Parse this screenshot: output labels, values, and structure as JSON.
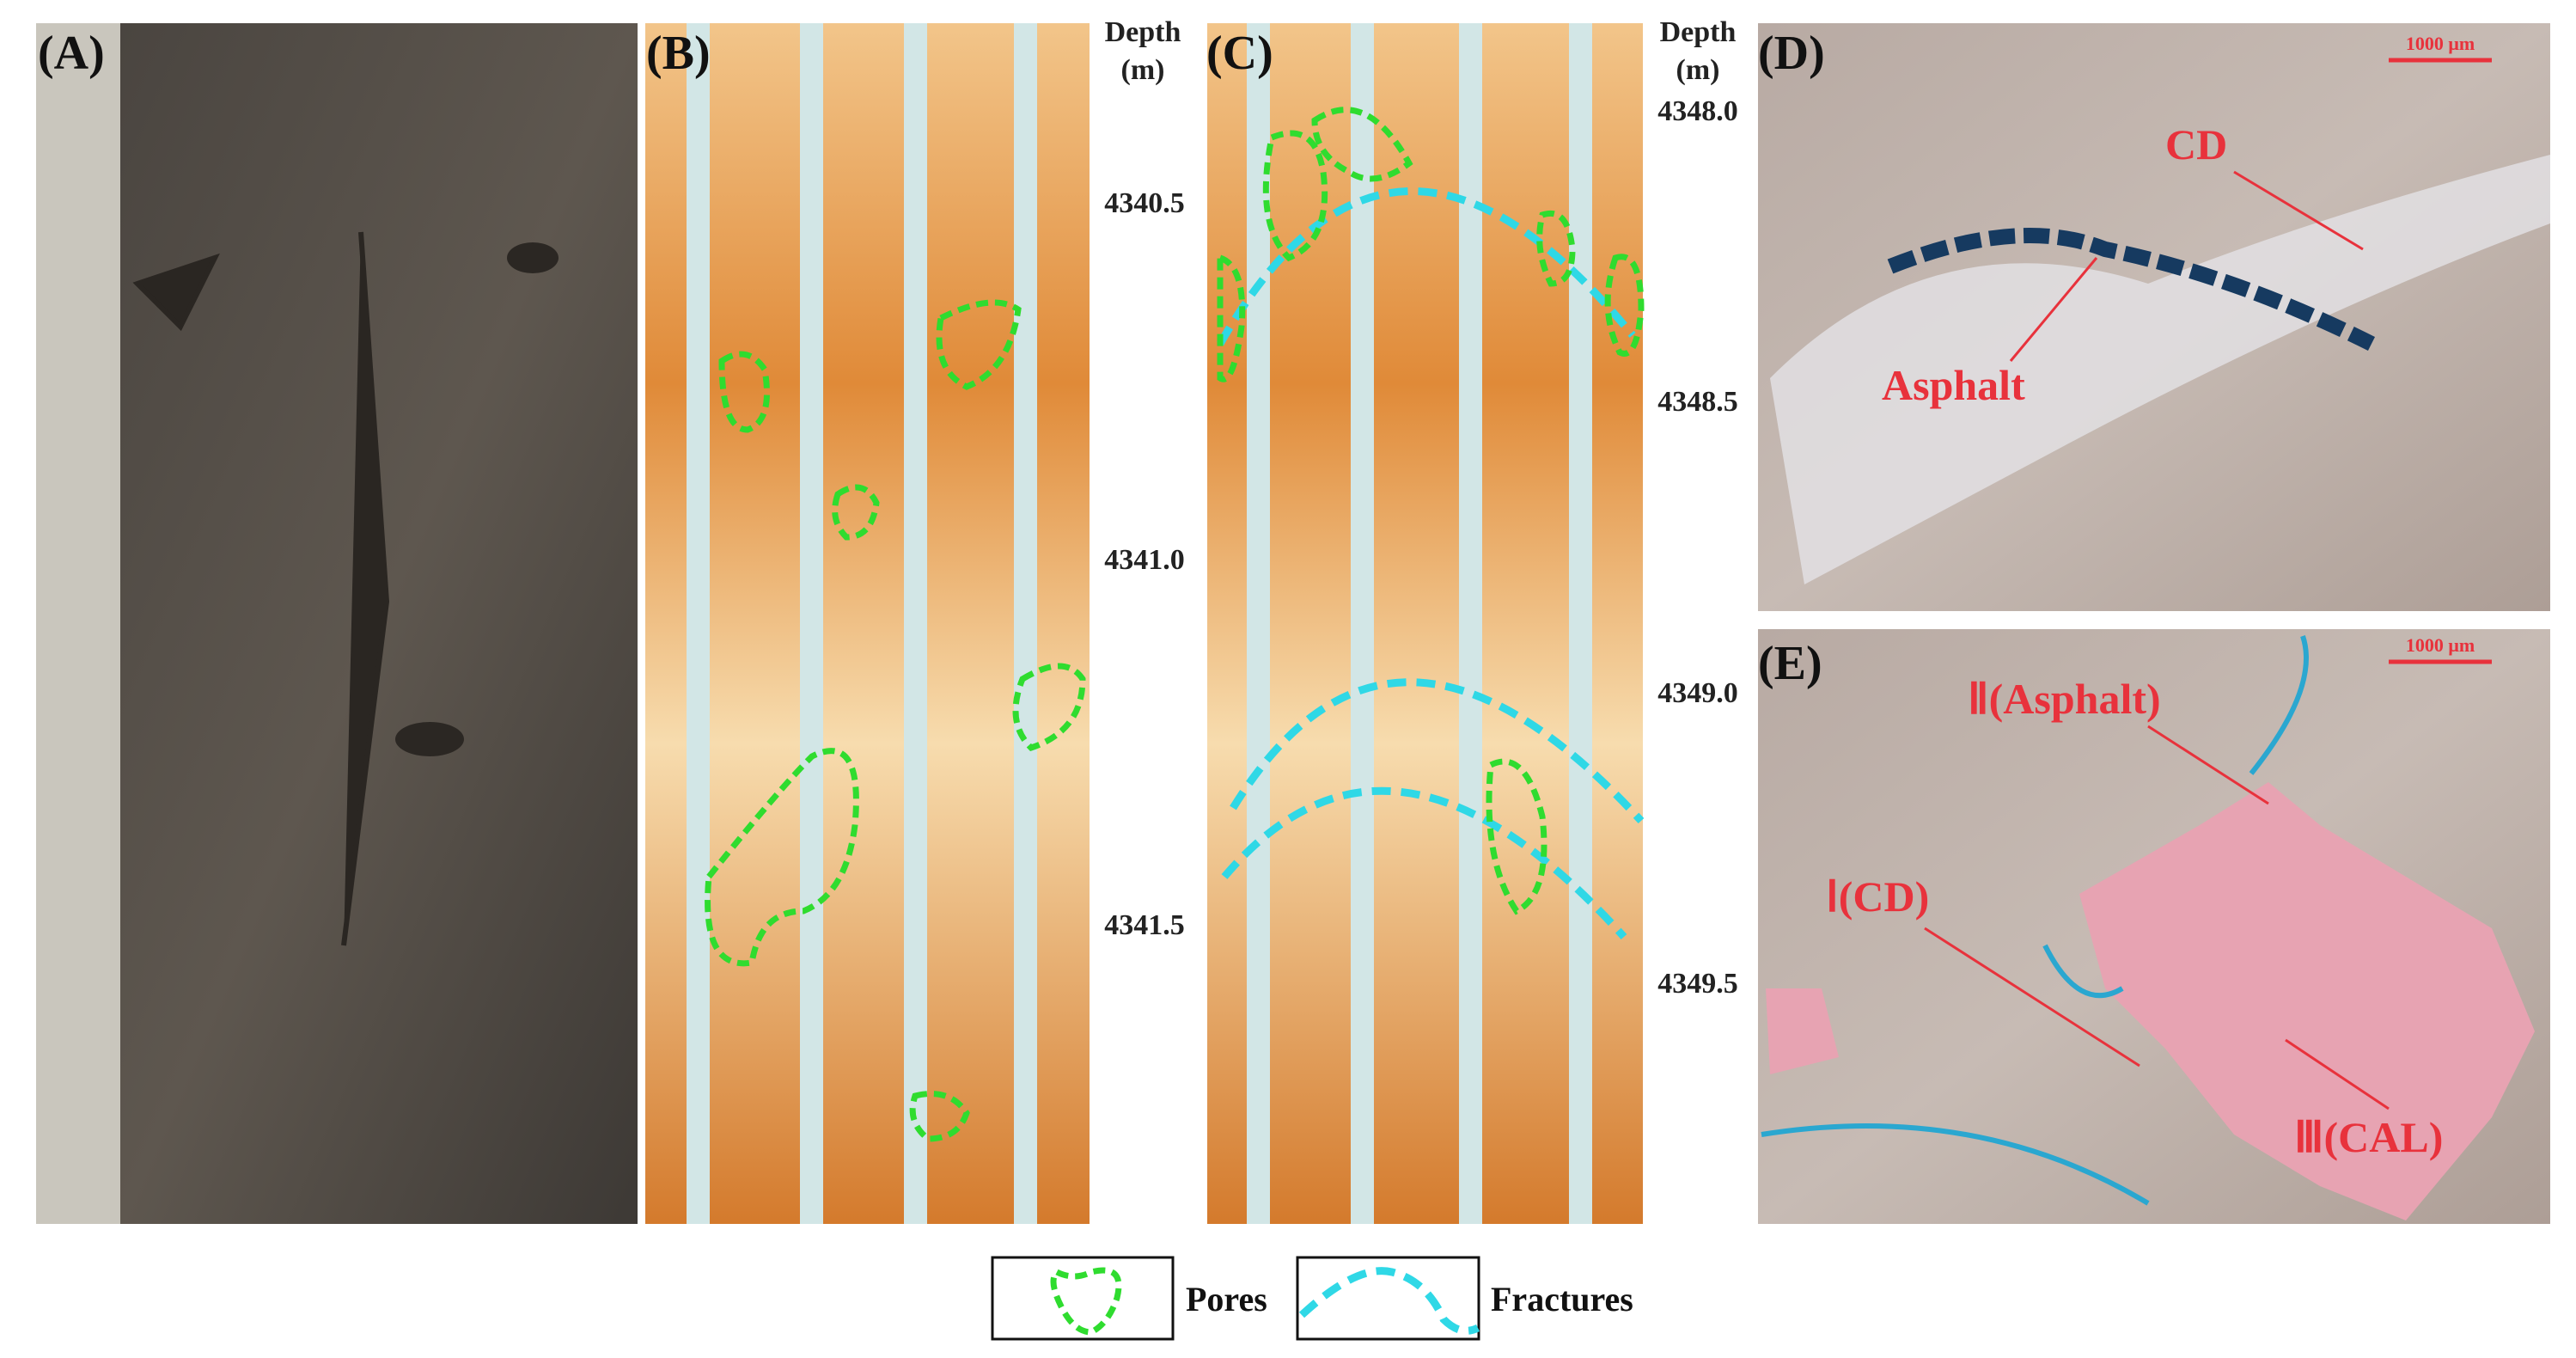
{
  "panels": [
    {
      "label": "(A)"
    },
    {
      "label": "(B)",
      "depth_title": [
        "Depth",
        "(m)"
      ],
      "depth_ticks": [
        "4340.5",
        "4341.0",
        "4341.5"
      ]
    },
    {
      "label": "(C)",
      "depth_title": [
        "Depth",
        "(m)"
      ],
      "depth_ticks": [
        "4348.0",
        "4348.5",
        "4349.0",
        "4349.5"
      ]
    },
    {
      "label": "(D)",
      "scale_bar": "1000 μm",
      "annotations": [
        "CD",
        "Asphalt"
      ]
    },
    {
      "label": "(E)",
      "scale_bar": "1000 μm",
      "annotations": [
        "Ⅱ(Asphalt)",
        "Ⅰ(CD)",
        "Ⅲ(CAL)"
      ]
    }
  ],
  "legend": [
    "Pores",
    "Fractures"
  ]
}
